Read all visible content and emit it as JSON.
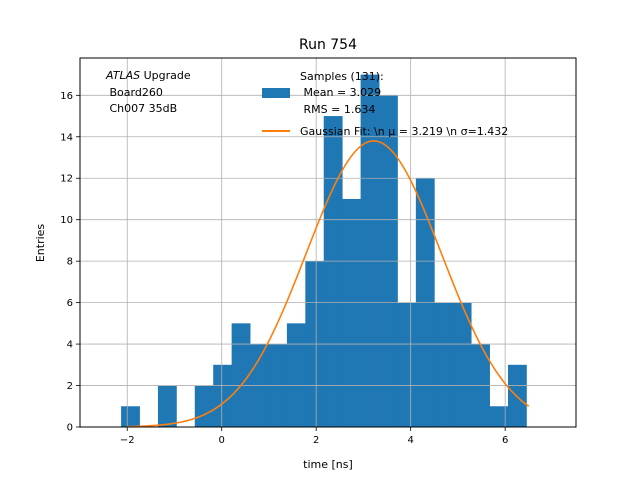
{
  "chart_data": {
    "type": "bar",
    "title": "Run 754",
    "xlabel": "time [ns]",
    "ylabel": "Entries",
    "xlim": [
      -3,
      7.5
    ],
    "ylim": [
      0,
      17.8
    ],
    "xticks": [
      -2,
      0,
      2,
      4,
      6
    ],
    "yticks": [
      0,
      2,
      4,
      6,
      8,
      10,
      12,
      14,
      16
    ],
    "grid": true,
    "legend_position": "top-right",
    "bin_width": 0.39,
    "histogram": {
      "name": "Samples (131):\n Mean = 3.029\n RMS = 1.634",
      "color": "#1f77b4",
      "bin_starts": [
        -2.13,
        -1.35,
        -0.57,
        -0.18,
        0.21,
        0.6,
        0.99,
        1.38,
        1.77,
        2.16,
        2.55,
        2.94,
        3.33,
        3.72,
        4.11,
        4.5,
        4.89,
        5.28,
        5.67,
        6.06
      ],
      "values": [
        1,
        2,
        2,
        3,
        5,
        4,
        4,
        5,
        8,
        15,
        11,
        17,
        16,
        6,
        12,
        6,
        6,
        4,
        1,
        3
      ]
    },
    "fit": {
      "name": "Gaussian Fit: \\n $\\mu$ = 3.219 \\n $\\sigma$=1.432",
      "legend_display": "Gaussian Fit: \\n μ = 3.219 \\n σ=1.432",
      "color": "#ff7f0e",
      "amplitude": 13.8,
      "mu": 3.219,
      "sigma": 1.432,
      "x_range": [
        -2.0,
        6.5
      ]
    },
    "annotation": {
      "line1_italic": "ATLAS",
      "line1_rest": " Upgrade",
      "line2": " Board260",
      "line3": " Ch007 35dB"
    },
    "legend": {
      "hist_lines": [
        "Samples (131):",
        " Mean = 3.029",
        " RMS = 1.634"
      ],
      "fit_line": "Gaussian Fit: \\n μ = 3.219 \\n σ=1.432"
    }
  }
}
